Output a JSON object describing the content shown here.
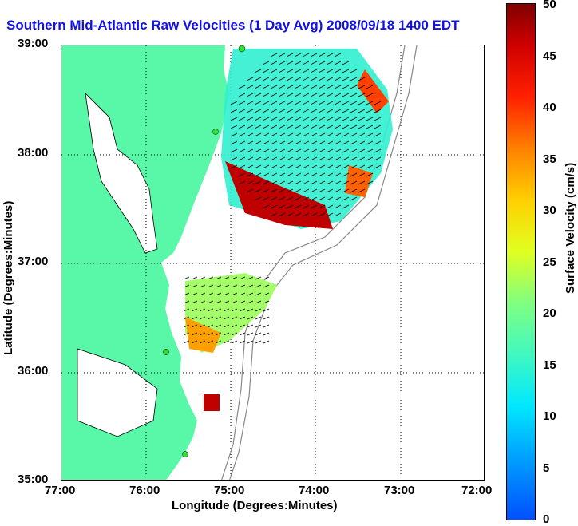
{
  "title": "Southern Mid-Atlantic Raw Velocities (1 Day Avg) 2008/09/18 1400 EDT",
  "x_axis": {
    "label": "Longitude (Degrees:Minutes)",
    "ticks": [
      "77:00",
      "76:00",
      "75:00",
      "74:00",
      "73:00",
      "72:00"
    ]
  },
  "y_axis": {
    "label": "Latitude (Degrees:Minutes)",
    "ticks": [
      "39:00",
      "38:00",
      "37:00",
      "36:00",
      "35:00"
    ]
  },
  "colorbar": {
    "label": "Surface Velocity (cm/s)",
    "ticks": [
      "50",
      "45",
      "40",
      "35",
      "30",
      "25",
      "20",
      "15",
      "10",
      "5",
      "0"
    ]
  },
  "colors": {
    "land": "#58f8a8",
    "title": "#1010ee"
  }
}
